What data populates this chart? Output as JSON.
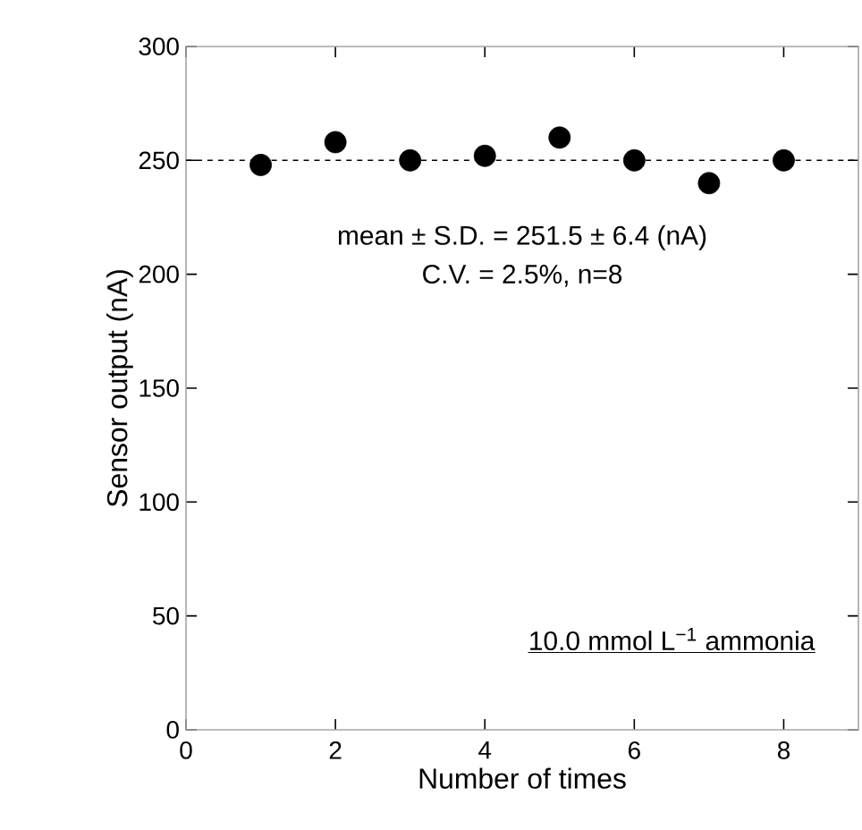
{
  "chart_data": {
    "type": "scatter",
    "xlabel": "Number of times",
    "ylabel": "Sensor output (nA)",
    "x": [
      1,
      2,
      3,
      4,
      5,
      6,
      7,
      8
    ],
    "values": [
      248,
      258,
      250,
      252,
      260,
      250,
      240,
      250
    ],
    "color": "#000000",
    "marker": "circle",
    "xlim": [
      0,
      9
    ],
    "ylim": [
      0,
      300
    ],
    "xticks": [
      0,
      2,
      4,
      6,
      8
    ],
    "yticks": [
      0,
      50,
      100,
      150,
      200,
      250,
      300
    ],
    "ref_lines": [
      {
        "axis": "y",
        "value": 250,
        "line_style": "dashed",
        "color": "#000000"
      }
    ],
    "annotations": [
      "mean ± S.D. = 251.5 ± 6.4 (nA)",
      "C.V. = 2.5%,  n=8",
      "10.0 mmol L$^{−1}$ ammonia"
    ],
    "grid": false
  }
}
